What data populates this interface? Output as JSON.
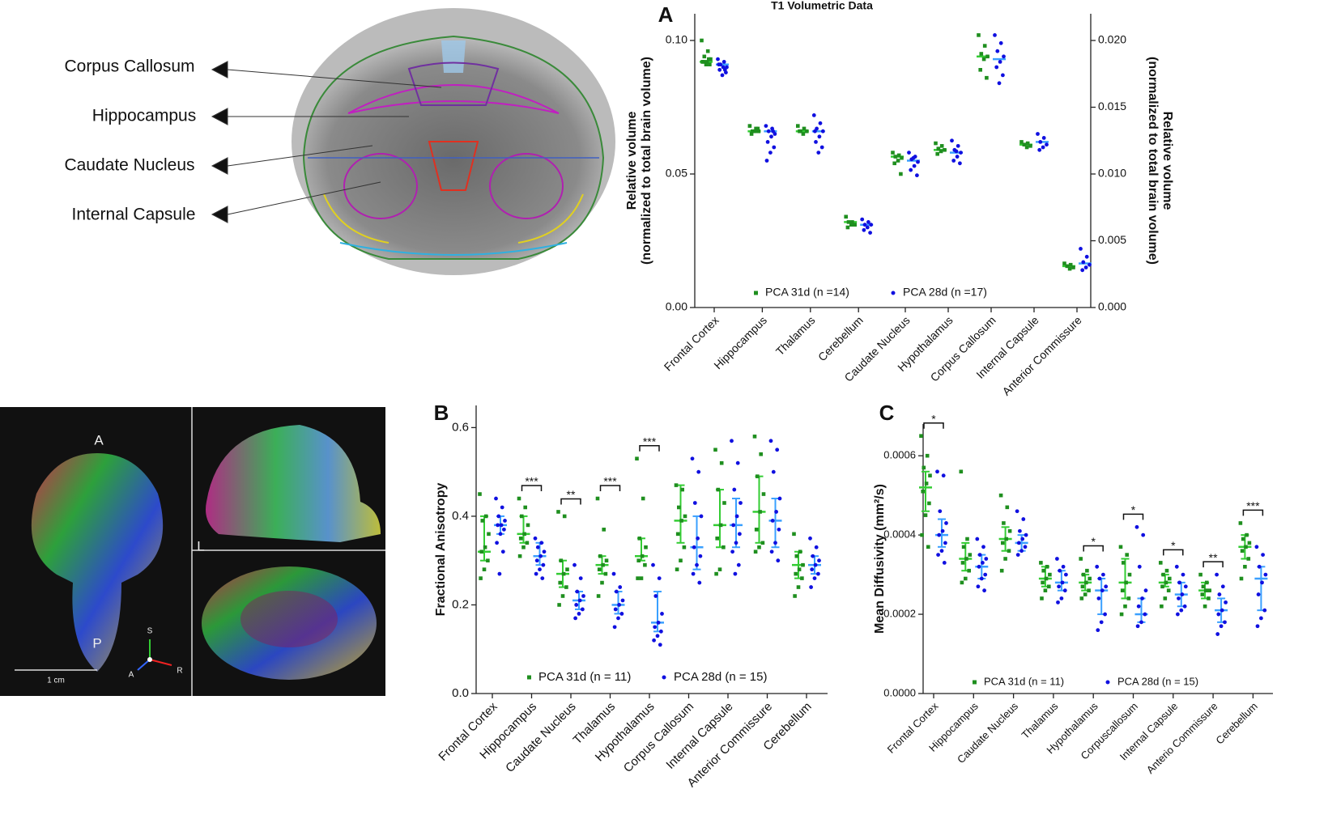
{
  "figure_labels": {
    "brain_regions": [
      "Corpus Callosum",
      "Hippocampus",
      "Caudate Nucleus",
      "Internal Capsule"
    ],
    "orientation": {
      "anterior": "A",
      "left": "L",
      "posterior": "P",
      "superior": "S",
      "axis_anterior": "A",
      "axis_right": "R"
    },
    "scale_bar": "1 cm"
  },
  "chart_data": [
    {
      "type": "strip",
      "panel": "A",
      "title": "T1 Volumetric Data",
      "ylabel": [
        "Relative volume",
        "(normalized to total brain volume)"
      ],
      "y2label": [
        "Relative volume",
        "(normalized to total brain volume)"
      ],
      "categories": [
        "Frontal Cortex",
        "Hippocampus",
        "Thalamus",
        "Cerebellum",
        "Caudate Nucleus",
        "Hypothalamus",
        "Corpus Callosum",
        "Internal Capsule",
        "Anterior Commissure"
      ],
      "category_axis": [
        "y",
        "y",
        "y",
        "y",
        "y2",
        "y2",
        "y2",
        "y2",
        "y2"
      ],
      "ylim": [
        0,
        0.11
      ],
      "yticks": [
        {
          "value": 0,
          "label": "0.00"
        },
        {
          "value": 0.05,
          "label": "0.05"
        },
        {
          "value": 0.1,
          "label": "0.10"
        }
      ],
      "y2lim": [
        0,
        0.022
      ],
      "y2ticks": [
        {
          "value": 0,
          "label": "0.000"
        },
        0.005,
        {
          "value": 0.01,
          "label": "0.010"
        },
        0.015,
        {
          "value": 0.02,
          "label": "0.020"
        }
      ],
      "series": [
        {
          "name": "PCA 31d (n =14)",
          "color": "#1f8f1f",
          "summary_color": "#33cc33",
          "values": [
            [
              0.1,
              0.096,
              0.094,
              0.093,
              0.092,
              0.092,
              0.091,
              0.091,
              0.092,
              0.093
            ],
            [
              0.068,
              0.067,
              0.066,
              0.066,
              0.066,
              0.065,
              0.067
            ],
            [
              0.068,
              0.067,
              0.066,
              0.066,
              0.065,
              0.066
            ],
            [
              0.034,
              0.032,
              0.032,
              0.031,
              0.031,
              0.03
            ],
            [
              0.0116,
              0.0114,
              0.0113,
              0.0112,
              0.011,
              0.0108,
              0.01
            ],
            [
              0.0123,
              0.0121,
              0.0119,
              0.0118,
              0.0117,
              0.0115
            ],
            [
              0.0204,
              0.0196,
              0.019,
              0.0188,
              0.0186,
              0.0178,
              0.0172
            ],
            [
              0.0124,
              0.0123,
              0.0122,
              0.0121,
              0.012
            ],
            [
              0.0033,
              0.0032,
              0.0031,
              0.003,
              0.0029
            ]
          ],
          "medians": [
            0.092,
            0.066,
            0.066,
            0.032,
            0.0113,
            0.0118,
            0.0188,
            0.0122,
            0.0031
          ]
        },
        {
          "name": "PCA 28d (n =17)",
          "color": "#1010e0",
          "summary_color": "#3aa0ff",
          "values": [
            [
              0.093,
              0.092,
              0.091,
              0.09,
              0.09,
              0.089,
              0.088,
              0.087,
              0.091,
              0.089
            ],
            [
              0.068,
              0.067,
              0.066,
              0.065,
              0.064,
              0.062,
              0.06,
              0.058,
              0.055,
              0.066
            ],
            [
              0.072,
              0.069,
              0.067,
              0.066,
              0.064,
              0.062,
              0.06,
              0.058,
              0.066
            ],
            [
              0.033,
              0.032,
              0.031,
              0.031,
              0.03,
              0.029,
              0.028
            ],
            [
              0.0116,
              0.0113,
              0.0111,
              0.0109,
              0.0106,
              0.0103,
              0.0099,
              0.0112
            ],
            [
              0.0125,
              0.0121,
              0.0118,
              0.0116,
              0.0113,
              0.011,
              0.0108,
              0.0117
            ],
            [
              0.0204,
              0.0198,
              0.0192,
              0.0188,
              0.0184,
              0.018,
              0.0174,
              0.0168
            ],
            [
              0.013,
              0.0127,
              0.0124,
              0.0122,
              0.012,
              0.0118
            ],
            [
              0.0044,
              0.0038,
              0.0034,
              0.0032,
              0.003,
              0.0028
            ]
          ],
          "medians": [
            0.091,
            0.066,
            0.066,
            0.031,
            0.011,
            0.0116,
            0.0186,
            0.0124,
            0.0033
          ]
        }
      ]
    },
    {
      "type": "strip",
      "panel": "B",
      "ylabel": [
        "Fractional Anisotropy"
      ],
      "categories": [
        "Frontal Cortex",
        "Hippocampus",
        "Caudate Nucleus",
        "Thalamus",
        "Hypothalamus",
        "Corpus Callosum",
        "Internal Capsule",
        "Anterior Commissure",
        "Cerebellum"
      ],
      "significance": [
        null,
        "***",
        "**",
        "***",
        "***",
        null,
        null,
        null,
        null
      ],
      "ylim": [
        0,
        0.65
      ],
      "yticks": [
        {
          "value": 0,
          "label": "0.0"
        },
        0.2,
        0.4,
        0.6
      ],
      "series": [
        {
          "name": "PCA 31d (n = 11)",
          "color": "#1f8f1f",
          "summary_color": "#33cc33",
          "values": [
            [
              0.45,
              0.4,
              0.39,
              0.36,
              0.33,
              0.32,
              0.3,
              0.28,
              0.26
            ],
            [
              0.44,
              0.42,
              0.4,
              0.38,
              0.36,
              0.35,
              0.34,
              0.33,
              0.31
            ],
            [
              0.41,
              0.4,
              0.3,
              0.28,
              0.27,
              0.25,
              0.24,
              0.22,
              0.2
            ],
            [
              0.44,
              0.37,
              0.31,
              0.3,
              0.29,
              0.28,
              0.27,
              0.25,
              0.22
            ],
            [
              0.53,
              0.44,
              0.35,
              0.33,
              0.31,
              0.3,
              0.29,
              0.26,
              0.26
            ],
            [
              0.47,
              0.46,
              0.42,
              0.4,
              0.39,
              0.36,
              0.33,
              0.3,
              0.28
            ],
            [
              0.55,
              0.52,
              0.46,
              0.43,
              0.38,
              0.35,
              0.33,
              0.28,
              0.27
            ],
            [
              0.58,
              0.54,
              0.49,
              0.45,
              0.41,
              0.37,
              0.34,
              0.33,
              0.32
            ],
            [
              0.36,
              0.32,
              0.31,
              0.29,
              0.28,
              0.27,
              0.26,
              0.24,
              0.22
            ]
          ],
          "medians": [
            0.32,
            0.36,
            0.27,
            0.29,
            0.31,
            0.39,
            0.38,
            0.41,
            0.29
          ],
          "iqr": [
            [
              0.3,
              0.4
            ],
            [
              0.34,
              0.4
            ],
            [
              0.24,
              0.3
            ],
            [
              0.27,
              0.31
            ],
            [
              0.3,
              0.35
            ],
            [
              0.34,
              0.47
            ],
            [
              0.33,
              0.46
            ],
            [
              0.34,
              0.49
            ],
            [
              0.26,
              0.32
            ]
          ]
        },
        {
          "name": "PCA 28d (n = 15)",
          "color": "#1010e0",
          "summary_color": "#3aa0ff",
          "values": [
            [
              0.44,
              0.42,
              0.4,
              0.39,
              0.38,
              0.38,
              0.37,
              0.36,
              0.34,
              0.32,
              0.27
            ],
            [
              0.35,
              0.34,
              0.33,
              0.32,
              0.31,
              0.3,
              0.29,
              0.28,
              0.27,
              0.26
            ],
            [
              0.29,
              0.26,
              0.23,
              0.22,
              0.21,
              0.2,
              0.19,
              0.18,
              0.17
            ],
            [
              0.27,
              0.24,
              0.23,
              0.21,
              0.2,
              0.19,
              0.18,
              0.17,
              0.15
            ],
            [
              0.29,
              0.26,
              0.22,
              0.18,
              0.16,
              0.15,
              0.14,
              0.13,
              0.12,
              0.11
            ],
            [
              0.53,
              0.5,
              0.43,
              0.4,
              0.35,
              0.33,
              0.31,
              0.29,
              0.27,
              0.25
            ],
            [
              0.57,
              0.52,
              0.46,
              0.43,
              0.4,
              0.38,
              0.36,
              0.34,
              0.32,
              0.29,
              0.27
            ],
            [
              0.57,
              0.55,
              0.5,
              0.44,
              0.41,
              0.39,
              0.37,
              0.34,
              0.32,
              0.3
            ],
            [
              0.35,
              0.33,
              0.31,
              0.3,
              0.29,
              0.28,
              0.27,
              0.26,
              0.24
            ]
          ],
          "medians": [
            0.38,
            0.31,
            0.21,
            0.2,
            0.16,
            0.33,
            0.38,
            0.39,
            0.29
          ],
          "iqr": [
            [
              0.36,
              0.4
            ],
            [
              0.29,
              0.34
            ],
            [
              0.19,
              0.23
            ],
            [
              0.18,
              0.23
            ],
            [
              0.14,
              0.23
            ],
            [
              0.28,
              0.4
            ],
            [
              0.33,
              0.44
            ],
            [
              0.33,
              0.44
            ],
            [
              0.27,
              0.31
            ]
          ]
        }
      ]
    },
    {
      "type": "strip",
      "panel": "C",
      "ylabel": [
        "Mean Diffusivity (mm²/s)"
      ],
      "categories": [
        "Frontal Cortex",
        "Hippocampus",
        "Caudate Nucleus",
        "Thalamus",
        "Hypothalamus",
        "Corpuscallosum",
        "Internal Capsule",
        "Anterio Commissure",
        "Cerebellum"
      ],
      "significance": [
        "*",
        null,
        null,
        null,
        "*",
        "*",
        "*",
        "**",
        "***"
      ],
      "ylim": [
        0,
        0.00068
      ],
      "yticks": [
        {
          "value": 0,
          "label": "0.0000"
        },
        0.0002,
        0.0004,
        0.0006
      ],
      "series": [
        {
          "name": "PCA 31d (n = 11)",
          "color": "#1f8f1f",
          "summary_color": "#33cc33",
          "values": [
            [
              0.00065,
              0.0006,
              0.00057,
              0.00055,
              0.00053,
              0.00051,
              0.00048,
              0.00045,
              0.0004,
              0.00037
            ],
            [
              0.00056,
              0.00039,
              0.00037,
              0.00035,
              0.00034,
              0.00033,
              0.00031,
              0.00029,
              0.00028
            ],
            [
              0.0005,
              0.00047,
              0.00043,
              0.00041,
              0.00039,
              0.00038,
              0.00036,
              0.00034,
              0.00031
            ],
            [
              0.00033,
              0.00032,
              0.00031,
              0.0003,
              0.00029,
              0.00028,
              0.00027,
              0.00026,
              0.00024
            ],
            [
              0.00034,
              0.00031,
              0.0003,
              0.00029,
              0.00028,
              0.00027,
              0.00026,
              0.00025,
              0.00024
            ],
            [
              0.00037,
              0.00035,
              0.00033,
              0.0003,
              0.00028,
              0.00026,
              0.00024,
              0.00022,
              0.0002
            ],
            [
              0.00033,
              0.00031,
              0.0003,
              0.00029,
              0.00028,
              0.00027,
              0.00026,
              0.00024,
              0.00022
            ],
            [
              0.0003,
              0.00028,
              0.00027,
              0.00026,
              0.00026,
              0.00025,
              0.00024,
              0.00022
            ],
            [
              0.00043,
              0.0004,
              0.00039,
              0.00038,
              0.00037,
              0.00036,
              0.00034,
              0.00032,
              0.00029
            ]
          ],
          "medians": [
            0.00052,
            0.00034,
            0.00039,
            0.00029,
            0.00028,
            0.00028,
            0.00028,
            0.00026,
            0.00037
          ],
          "iqr": [
            [
              0.00046,
              0.00056
            ],
            [
              0.00031,
              0.00038
            ],
            [
              0.00036,
              0.00042
            ],
            [
              0.00027,
              0.00032
            ],
            [
              0.00026,
              0.0003
            ],
            [
              0.00024,
              0.00034
            ],
            [
              0.00027,
              0.0003
            ],
            [
              0.00024,
              0.00028
            ],
            [
              0.00034,
              0.0004
            ]
          ]
        },
        {
          "name": "PCA 28d (n = 15)",
          "color": "#1010e0",
          "summary_color": "#3aa0ff",
          "values": [
            [
              0.00056,
              0.00055,
              0.00046,
              0.00043,
              0.00041,
              0.0004,
              0.00038,
              0.00036,
              0.00035,
              0.00033
            ],
            [
              0.00039,
              0.00037,
              0.00035,
              0.00034,
              0.00033,
              0.00032,
              0.0003,
              0.00029,
              0.00027,
              0.00026
            ],
            [
              0.00046,
              0.00044,
              0.00041,
              0.0004,
              0.00039,
              0.00038,
              0.00037,
              0.00036,
              0.00035
            ],
            [
              0.00034,
              0.00032,
              0.00031,
              0.0003,
              0.00028,
              0.00027,
              0.00026,
              0.00024,
              0.00023
            ],
            [
              0.00032,
              0.0003,
              0.00029,
              0.00027,
              0.00026,
              0.00024,
              0.0002,
              0.00018,
              0.00016
            ],
            [
              0.00042,
              0.0004,
              0.00032,
              0.00026,
              0.00024,
              0.00022,
              0.0002,
              0.00018,
              0.00017
            ],
            [
              0.00032,
              0.0003,
              0.00028,
              0.00027,
              0.00025,
              0.00024,
              0.00022,
              0.00021,
              0.0002
            ],
            [
              0.0003,
              0.00027,
              0.00025,
              0.00023,
              0.00021,
              0.0002,
              0.00018,
              0.00017,
              0.00015
            ],
            [
              0.00037,
              0.00035,
              0.00032,
              0.0003,
              0.00028,
              0.00025,
              0.00021,
              0.00019,
              0.00017
            ]
          ],
          "medians": [
            0.0004,
            0.00032,
            0.00038,
            0.00028,
            0.00026,
            0.0002,
            0.00025,
            0.00021,
            0.00029
          ],
          "iqr": [
            [
              0.00037,
              0.00044
            ],
            [
              0.00029,
              0.00035
            ],
            [
              0.00036,
              0.0004
            ],
            [
              0.00026,
              0.00031
            ],
            [
              0.0002,
              0.00029
            ],
            [
              0.00018,
              0.00024
            ],
            [
              0.00022,
              0.00028
            ],
            [
              0.00018,
              0.00024
            ],
            [
              0.00021,
              0.00032
            ]
          ]
        }
      ]
    }
  ]
}
